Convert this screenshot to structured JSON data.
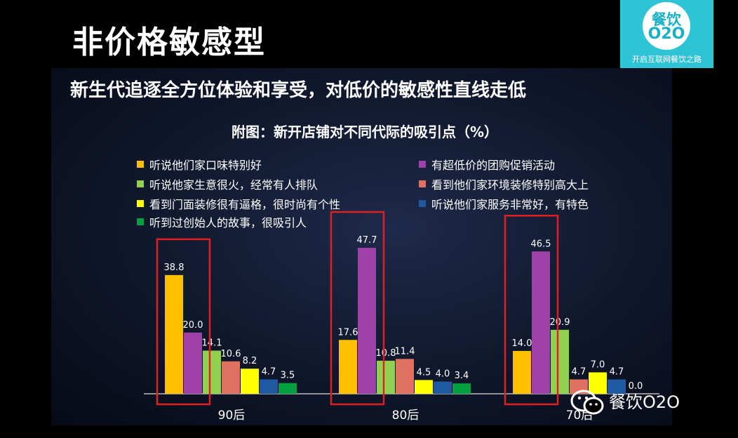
{
  "page_title": "非价格敏感型",
  "logo": {
    "line1": "餐饮",
    "line2": "O2O",
    "slogan": "开启互联网餐饮之路"
  },
  "headline": "新生代追逐全方位体验和享受，对低价的敏感性直线走低",
  "chart_data": {
    "type": "bar",
    "title": "附图：新开店铺对不同代际的吸引点（%）",
    "categories": [
      "90后",
      "80后",
      "70后"
    ],
    "series": [
      {
        "name": "听说他们家口味特别好",
        "color": "#ffc000",
        "values": [
          38.8,
          17.6,
          14.0
        ]
      },
      {
        "name": "有超低价的团购促销活动",
        "color": "#a040a8",
        "values": [
          20.0,
          47.7,
          46.5
        ]
      },
      {
        "name": "听说他家生意很火，经常有人排队",
        "color": "#92d050",
        "values": [
          14.1,
          10.8,
          20.9
        ]
      },
      {
        "name": "看到他们家环境装修特别高大上",
        "color": "#e07060",
        "values": [
          10.6,
          11.4,
          4.7
        ]
      },
      {
        "name": "看到门面装修很有逼格，很时尚有个性",
        "color": "#ffff00",
        "values": [
          8.2,
          4.5,
          7.0
        ]
      },
      {
        "name": "听说他们家服务非常好，有特色",
        "color": "#1f5aa0",
        "values": [
          4.7,
          4.0,
          4.7
        ]
      },
      {
        "name": "听到过创始人的故事，很吸引人",
        "color": "#00a040",
        "values": [
          3.5,
          3.4,
          0.0
        ]
      }
    ],
    "data_labels": [
      [
        "38.8",
        "20.0",
        "14.1",
        "10.6",
        "8.2",
        "4.7",
        "3.5"
      ],
      [
        "17.6",
        "47.7",
        "10.8",
        "11.4",
        "4.5",
        "4.0",
        "3.4"
      ],
      [
        "14.0",
        "46.5",
        "20.9",
        "4.7",
        "7.0",
        "4.7",
        "0.0"
      ]
    ],
    "highlight_boxes": "first two series in each group outlined in red",
    "highlight_color": "#e02020",
    "legend_placement": "top"
  },
  "watermark": {
    "icon": "wechat-icon",
    "label": "餐饮O2O"
  }
}
